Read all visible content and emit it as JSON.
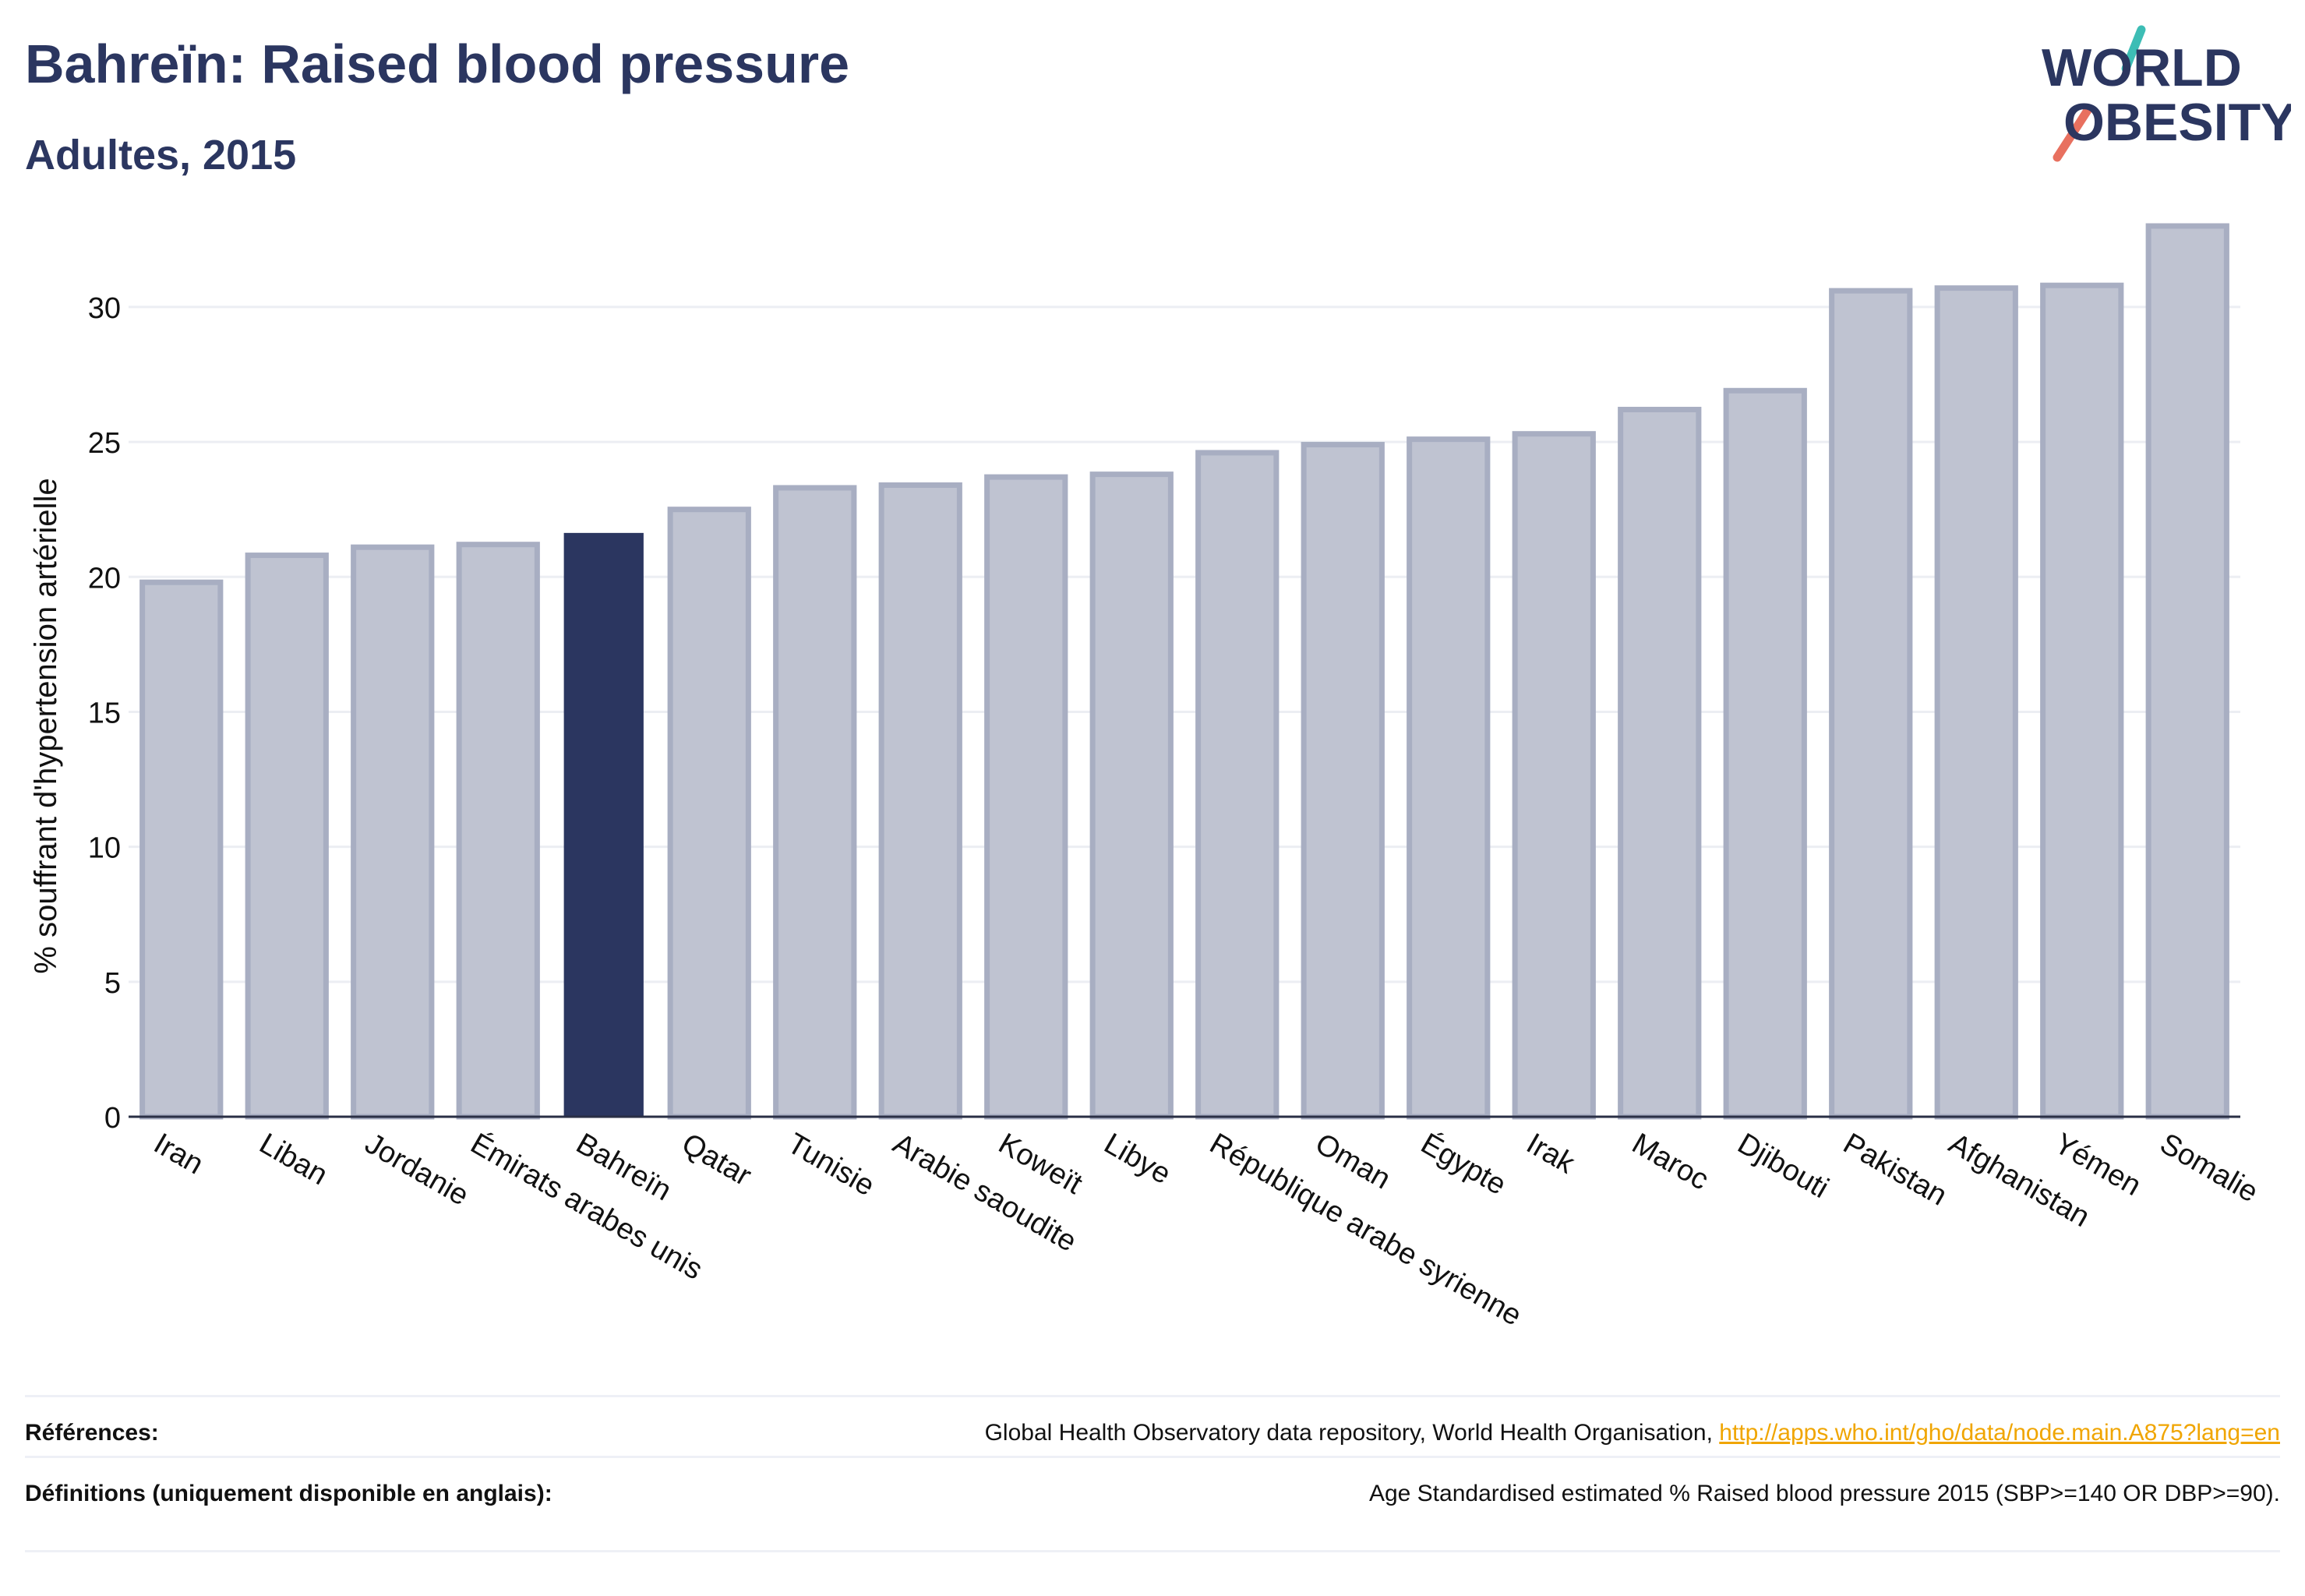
{
  "header": {
    "title": "Bahreïn: Raised blood pressure",
    "subtitle": "Adultes, 2015"
  },
  "logo": {
    "line1": "WORLD",
    "line2": "OBESITY"
  },
  "colors": {
    "highlight": "#2b3660",
    "bar_fill": "#bfc3d1",
    "bar_stroke": "#a8aec2",
    "text": "#2b3660",
    "link": "#f0a500",
    "logo_teal": "#3dbdb5",
    "logo_coral": "#e8705f"
  },
  "chart_data": {
    "type": "bar",
    "ylabel": "% souffrant d'hypertension artérielle",
    "xlabel": "",
    "ylim": [
      0,
      33
    ],
    "yticks": [
      0,
      5,
      10,
      15,
      20,
      25,
      30
    ],
    "grid": true,
    "highlight": "Bahreïn",
    "categories": [
      "Iran",
      "Liban",
      "Jordanie",
      "Émirats arabes unis",
      "Bahreïn",
      "Qatar",
      "Tunisie",
      "Arabie saoudite",
      "Koweït",
      "Libye",
      "République arabe syrienne",
      "Oman",
      "Égypte",
      "Irak",
      "Maroc",
      "Djibouti",
      "Pakistan",
      "Afghanistan",
      "Yémen",
      "Somalie"
    ],
    "values": [
      19.8,
      20.8,
      21.1,
      21.2,
      21.6,
      22.5,
      23.3,
      23.4,
      23.7,
      23.8,
      24.6,
      24.9,
      25.1,
      25.3,
      26.2,
      26.9,
      30.6,
      30.7,
      30.8,
      33.0
    ]
  },
  "references": {
    "label": "Références:",
    "text": "Global Health Observatory data repository, World Health Organisation, ",
    "link": "http://apps.who.int/gho/data/node.main.A875?lang=en"
  },
  "definitions": {
    "label": "Définitions (uniquement disponible en anglais):",
    "text": "Age Standardised estimated % Raised blood pressure 2015 (SBP>=140 OR DBP>=90)."
  }
}
